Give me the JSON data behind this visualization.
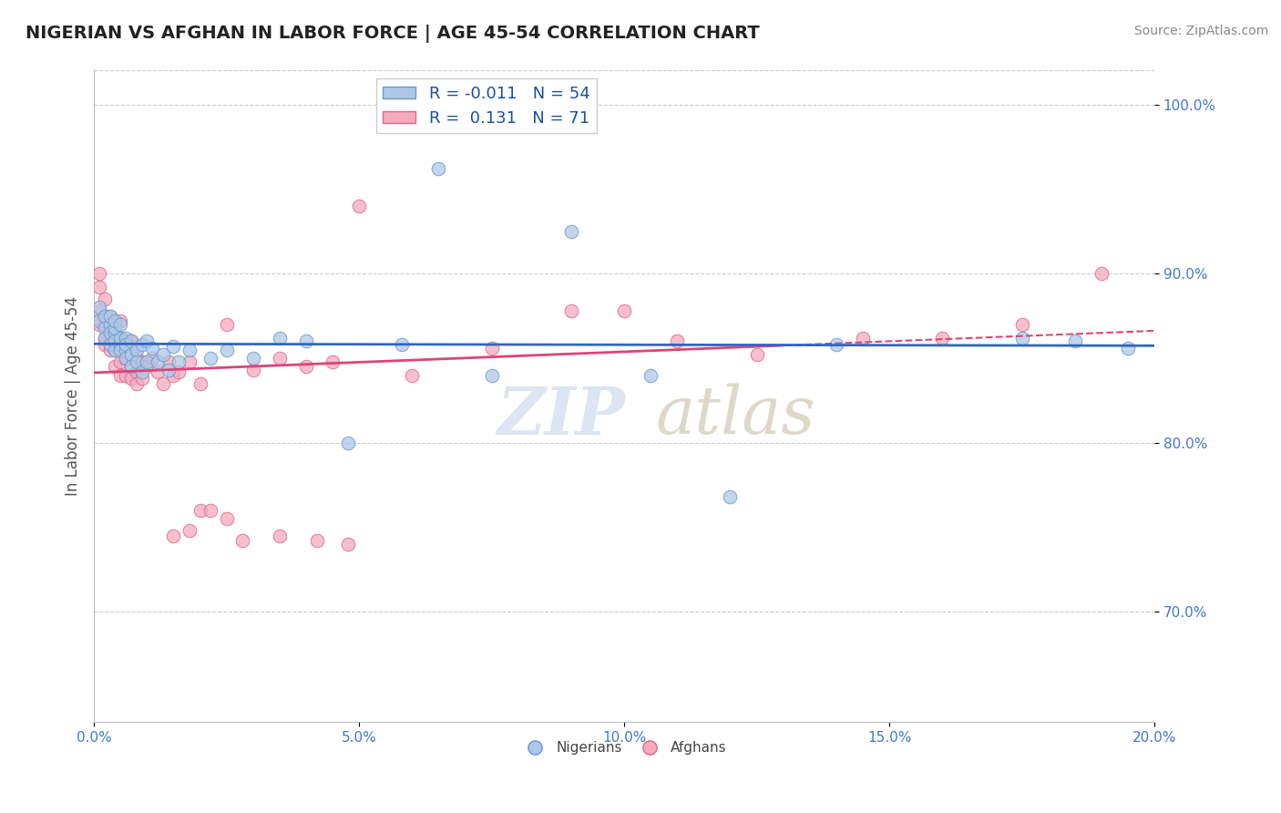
{
  "title": "NIGERIAN VS AFGHAN IN LABOR FORCE | AGE 45-54 CORRELATION CHART",
  "source": "Source: ZipAtlas.com",
  "ylabel": "In Labor Force | Age 45-54",
  "xlim": [
    0.0,
    0.2
  ],
  "ylim": [
    0.635,
    1.02
  ],
  "yticks": [
    0.7,
    0.8,
    0.9,
    1.0
  ],
  "ytick_labels": [
    "70.0%",
    "80.0%",
    "90.0%",
    "100.0%"
  ],
  "xticks": [
    0.0,
    0.05,
    0.1,
    0.15,
    0.2
  ],
  "xtick_labels": [
    "0.0%",
    "5.0%",
    "10.0%",
    "15.0%",
    "20.0%"
  ],
  "blue_R": -0.011,
  "blue_N": 54,
  "pink_R": 0.131,
  "pink_N": 71,
  "blue_color": "#adc8e8",
  "pink_color": "#f5aabe",
  "blue_edge_color": "#6699cc",
  "pink_edge_color": "#dd6688",
  "blue_line_color": "#3366bb",
  "pink_line_color": "#dd4477",
  "legend_label_blue": "Nigerians",
  "legend_label_pink": "Afghans",
  "blue_x": [
    0.001,
    0.001,
    0.002,
    0.002,
    0.002,
    0.003,
    0.003,
    0.003,
    0.003,
    0.004,
    0.004,
    0.004,
    0.004,
    0.004,
    0.005,
    0.005,
    0.005,
    0.005,
    0.006,
    0.006,
    0.006,
    0.006,
    0.007,
    0.007,
    0.007,
    0.008,
    0.008,
    0.009,
    0.009,
    0.01,
    0.01,
    0.011,
    0.012,
    0.013,
    0.014,
    0.015,
    0.016,
    0.018,
    0.022,
    0.025,
    0.03,
    0.035,
    0.04,
    0.048,
    0.058,
    0.065,
    0.075,
    0.09,
    0.105,
    0.12,
    0.14,
    0.175,
    0.185,
    0.195
  ],
  "blue_y": [
    0.872,
    0.88,
    0.868,
    0.875,
    0.862,
    0.87,
    0.865,
    0.858,
    0.875,
    0.865,
    0.86,
    0.855,
    0.868,
    0.872,
    0.858,
    0.862,
    0.855,
    0.87,
    0.855,
    0.862,
    0.85,
    0.858,
    0.86,
    0.852,
    0.845,
    0.855,
    0.848,
    0.858,
    0.842,
    0.86,
    0.848,
    0.856,
    0.848,
    0.852,
    0.843,
    0.857,
    0.848,
    0.855,
    0.85,
    0.855,
    0.85,
    0.862,
    0.86,
    0.8,
    0.858,
    0.962,
    0.84,
    0.925,
    0.84,
    0.768,
    0.858,
    0.862,
    0.86,
    0.856
  ],
  "pink_x": [
    0.001,
    0.001,
    0.001,
    0.001,
    0.002,
    0.002,
    0.002,
    0.002,
    0.002,
    0.003,
    0.003,
    0.003,
    0.003,
    0.003,
    0.004,
    0.004,
    0.004,
    0.004,
    0.004,
    0.005,
    0.005,
    0.005,
    0.005,
    0.005,
    0.006,
    0.006,
    0.006,
    0.006,
    0.007,
    0.007,
    0.007,
    0.007,
    0.008,
    0.008,
    0.008,
    0.009,
    0.009,
    0.01,
    0.011,
    0.012,
    0.013,
    0.014,
    0.015,
    0.016,
    0.018,
    0.02,
    0.025,
    0.03,
    0.035,
    0.04,
    0.045,
    0.05,
    0.06,
    0.075,
    0.09,
    0.1,
    0.11,
    0.125,
    0.145,
    0.16,
    0.175,
    0.19,
    0.02,
    0.025,
    0.015,
    0.018,
    0.022,
    0.028,
    0.035,
    0.042,
    0.048
  ],
  "pink_y": [
    0.9,
    0.892,
    0.878,
    0.87,
    0.885,
    0.87,
    0.862,
    0.875,
    0.858,
    0.875,
    0.87,
    0.862,
    0.855,
    0.87,
    0.87,
    0.86,
    0.855,
    0.865,
    0.845,
    0.86,
    0.872,
    0.862,
    0.848,
    0.84,
    0.86,
    0.85,
    0.855,
    0.84,
    0.86,
    0.852,
    0.845,
    0.838,
    0.85,
    0.842,
    0.835,
    0.848,
    0.838,
    0.845,
    0.85,
    0.842,
    0.835,
    0.848,
    0.84,
    0.842,
    0.848,
    0.835,
    0.87,
    0.843,
    0.85,
    0.845,
    0.848,
    0.94,
    0.84,
    0.856,
    0.878,
    0.878,
    0.86,
    0.852,
    0.862,
    0.862,
    0.87,
    0.9,
    0.76,
    0.755,
    0.745,
    0.748,
    0.76,
    0.742,
    0.745,
    0.742,
    0.74
  ]
}
